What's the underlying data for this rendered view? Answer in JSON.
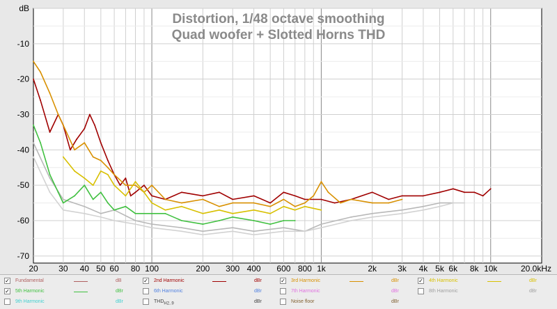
{
  "chart_data": {
    "type": "line",
    "title": "Distortion, 1/48 octave smoothing",
    "subtitle": "Quad woofer + Slotted Horns THD",
    "ylabel": "dB",
    "xscale": "log",
    "xlim": [
      20,
      20000
    ],
    "ylim": [
      -72,
      0
    ],
    "y_ticks": [
      "dB",
      "-10",
      "-20",
      "-30",
      "-40",
      "-50",
      "-60",
      "-70"
    ],
    "x_ticks": [
      "20",
      "30",
      "40",
      "50",
      "60",
      "80",
      "100",
      "200",
      "300",
      "400",
      "600",
      "800",
      "1k",
      "2k",
      "3k",
      "4k",
      "5k",
      "6k",
      "8k",
      "10k",
      "20.0kHz"
    ],
    "grid": true,
    "series": [
      {
        "name": "2nd Harmonic",
        "color": "#a00000",
        "x": [
          20,
          22,
          25,
          28,
          30,
          33,
          36,
          40,
          43,
          46,
          50,
          55,
          60,
          65,
          70,
          75,
          80,
          90,
          100,
          120,
          150,
          200,
          250,
          300,
          400,
          500,
          600,
          700,
          800,
          1000,
          1200,
          1500,
          2000,
          2500,
          3000,
          4000,
          5000,
          6000,
          7000,
          8000,
          9000,
          10000
        ],
        "y": [
          -20,
          -26,
          -35,
          -30,
          -33,
          -40,
          -37,
          -34,
          -30,
          -33,
          -38,
          -43,
          -47,
          -50,
          -48,
          -53,
          -52,
          -50,
          -53,
          -54,
          -52,
          -53,
          -52,
          -54,
          -53,
          -55,
          -52,
          -53,
          -54,
          -54,
          -55,
          -54,
          -52,
          -54,
          -53,
          -53,
          -52,
          -51,
          -52,
          -52,
          -53,
          -51
        ]
      },
      {
        "name": "3rd Harmonic",
        "color": "#d89000",
        "x": [
          20,
          22,
          25,
          28,
          30,
          35,
          40,
          45,
          50,
          55,
          60,
          70,
          80,
          90,
          100,
          120,
          150,
          200,
          250,
          300,
          400,
          500,
          600,
          700,
          800,
          900,
          1000,
          1100,
          1300,
          1500,
          2000,
          2500,
          3000
        ],
        "y": [
          -15,
          -18,
          -24,
          -30,
          -33,
          -40,
          -38,
          -42,
          -43,
          -45,
          -47,
          -50,
          -50,
          -52,
          -50,
          -54,
          -55,
          -54,
          -56,
          -55,
          -55,
          -56,
          -54,
          -56,
          -55,
          -53,
          -49,
          -52,
          -55,
          -54,
          -55,
          -55,
          -54
        ]
      },
      {
        "name": "4th Harmonic",
        "color": "#d8c000",
        "x": [
          30,
          35,
          40,
          45,
          50,
          55,
          60,
          70,
          80,
          90,
          100,
          120,
          150,
          200,
          250,
          300,
          400,
          500,
          600,
          700,
          800,
          1000
        ],
        "y": [
          -42,
          -46,
          -48,
          -50,
          -46,
          -47,
          -50,
          -53,
          -49,
          -52,
          -55,
          -57,
          -56,
          -58,
          -57,
          -58,
          -57,
          -58,
          -56,
          -57,
          -56,
          -57
        ]
      },
      {
        "name": "5th Harmonic",
        "color": "#40c040",
        "x": [
          20,
          22,
          25,
          28,
          30,
          35,
          40,
          45,
          50,
          55,
          60,
          70,
          80,
          100,
          120,
          150,
          200,
          250,
          300,
          400,
          500,
          600,
          700
        ],
        "y": [
          -33,
          -38,
          -47,
          -52,
          -55,
          -53,
          -50,
          -54,
          -52,
          -55,
          -57,
          -56,
          -58,
          -58,
          -58,
          -60,
          -61,
          -60,
          -59,
          -60,
          -61,
          -60,
          -60
        ]
      },
      {
        "name": "Fundamental",
        "color": "#b8b8b8",
        "x": [
          20,
          25,
          30,
          40,
          50,
          60,
          80,
          100,
          150,
          200,
          300,
          400,
          600,
          800,
          1000,
          1500,
          2000,
          3000,
          4000,
          5000,
          6000
        ],
        "y": [
          -38,
          -48,
          -54,
          -56,
          -58,
          -57,
          -60,
          -61,
          -62,
          -63,
          -62,
          -63,
          -62,
          -63,
          -61,
          -59,
          -58,
          -57,
          -56,
          -55,
          -55
        ]
      },
      {
        "name": "THD",
        "color": "#d2d2d2",
        "x": [
          20,
          25,
          30,
          40,
          50,
          60,
          80,
          100,
          150,
          200,
          300,
          400,
          600,
          800,
          1000,
          1500,
          2000,
          3000,
          4000,
          5000,
          6000,
          7000
        ],
        "y": [
          -42,
          -52,
          -57,
          -58,
          -59,
          -60,
          -61,
          -62,
          -63,
          -64,
          -63,
          -64,
          -63,
          -63,
          -62,
          -60,
          -59,
          -58,
          -57,
          -56,
          -55,
          -55
        ]
      }
    ]
  },
  "legend": [
    {
      "label": "Fundamental",
      "color": "#b06060",
      "unit": "dB",
      "checked": true,
      "enabled": true
    },
    {
      "label": "2nd Harmonic",
      "color": "#a00000",
      "unit": "dBr",
      "checked": true,
      "enabled": true
    },
    {
      "label": "3rd Harmonic",
      "color": "#d89000",
      "unit": "dBr",
      "checked": true,
      "enabled": true
    },
    {
      "label": "4th Harmonic",
      "color": "#d8c000",
      "unit": "dBr",
      "checked": true,
      "enabled": true
    },
    {
      "label": "5th Harmonic",
      "color": "#40c040",
      "unit": "dBr",
      "checked": true,
      "enabled": true
    },
    {
      "label": "6th Harmonic",
      "color": "#5080e0",
      "unit": "dBr",
      "checked": false,
      "enabled": false
    },
    {
      "label": "7th Harmonic",
      "color": "#e070e0",
      "unit": "dBr",
      "checked": false,
      "enabled": false
    },
    {
      "label": "8th Harmonic",
      "color": "#a0a0a0",
      "unit": "dBr",
      "checked": false,
      "enabled": false
    },
    {
      "label": "9th Harmonic",
      "color": "#40d0d0",
      "unit": "dBr",
      "checked": false,
      "enabled": false
    },
    {
      "label": "THD",
      "sub": "H2..9",
      "color": "#404040",
      "unit": "dBr",
      "checked": false,
      "enabled": false
    },
    {
      "label": "Noise floor",
      "color": "#806030",
      "unit": "dBr",
      "checked": false,
      "enabled": false
    }
  ]
}
